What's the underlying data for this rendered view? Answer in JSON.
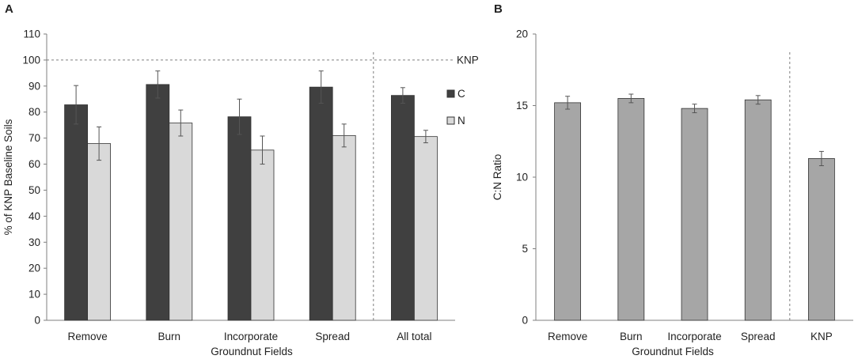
{
  "colors": {
    "c_bar": "#404040",
    "n_bar": "#d9d9d9",
    "ratio_bar": "#a6a6a6",
    "bar_stroke": "#333333",
    "error_bar": "#555555",
    "dashed": "#7f7f7f"
  },
  "chart_data": [
    {
      "panel_label": "A",
      "type": "bar",
      "xlabel": "Groundnut Fields",
      "ylabel": "% of KNP Baseline Soils",
      "ylim": [
        0,
        110
      ],
      "yticks": [
        0,
        10,
        20,
        30,
        40,
        50,
        60,
        70,
        80,
        90,
        100,
        110
      ],
      "grid": false,
      "legend_position": "right",
      "categories": [
        "Remove",
        "Burn",
        "Incorporate",
        "Spread",
        "All total"
      ],
      "series": [
        {
          "name": "C",
          "values": [
            82.8,
            90.6,
            78.2,
            89.6,
            86.4
          ],
          "errors": [
            7.4,
            5.2,
            6.8,
            6.2,
            3.0
          ]
        },
        {
          "name": "N",
          "values": [
            67.9,
            75.8,
            65.4,
            71.0,
            70.6
          ],
          "errors": [
            6.4,
            5.0,
            5.4,
            4.4,
            2.4
          ]
        }
      ],
      "reference_line": {
        "value": 100,
        "label": "KNP"
      },
      "separator_before_category": "All total"
    },
    {
      "panel_label": "B",
      "type": "bar",
      "xlabel": "Groundnut Fields",
      "ylabel": "C:N Ratio",
      "ylim": [
        0,
        20
      ],
      "yticks": [
        0,
        5,
        10,
        15,
        20
      ],
      "grid": false,
      "categories": [
        "Remove",
        "Burn",
        "Incorporate",
        "Spread",
        "KNP"
      ],
      "series": [
        {
          "name": "C:N Ratio",
          "values": [
            15.2,
            15.5,
            14.8,
            15.4,
            11.3
          ],
          "errors": [
            0.45,
            0.3,
            0.3,
            0.3,
            0.5
          ]
        }
      ],
      "separator_before_category": "KNP"
    }
  ]
}
